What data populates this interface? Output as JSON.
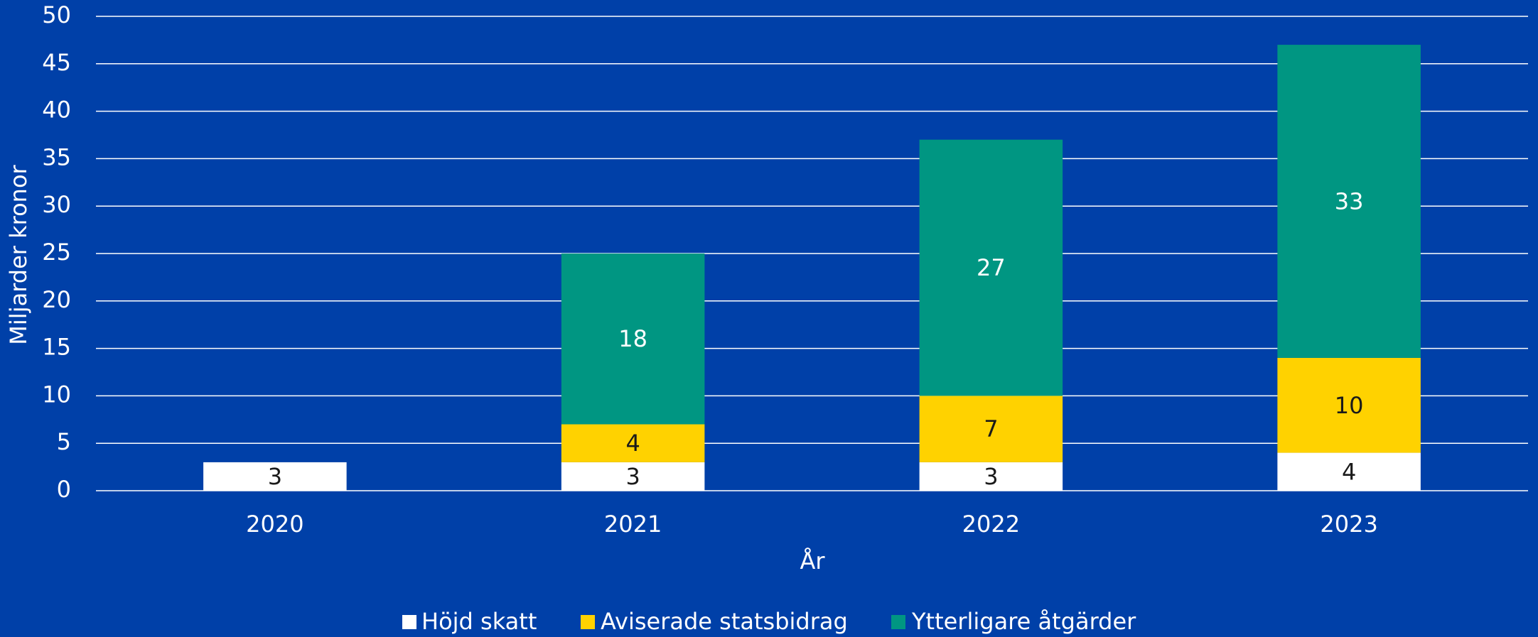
{
  "chart_data": {
    "type": "bar",
    "x_label": "År",
    "y_label": "Miljarder kronor",
    "categories": [
      "2020",
      "2021",
      "2022",
      "2023"
    ],
    "series": [
      {
        "name": "Höjd skatt",
        "color": "#ffffff",
        "values": [
          3,
          3,
          3,
          4
        ]
      },
      {
        "name": "Aviserade statsbidrag",
        "color": "#ffd200",
        "values": [
          null,
          4,
          7,
          10
        ]
      },
      {
        "name": "Ytterligare åtgärder",
        "color": "#009682",
        "values": [
          null,
          18,
          27,
          33
        ]
      }
    ],
    "stacked": true,
    "ylim": [
      0,
      50
    ],
    "yticks": [
      0,
      5,
      10,
      15,
      20,
      25,
      30,
      35,
      40,
      45,
      50
    ],
    "grid": true,
    "legend": "bottom"
  }
}
